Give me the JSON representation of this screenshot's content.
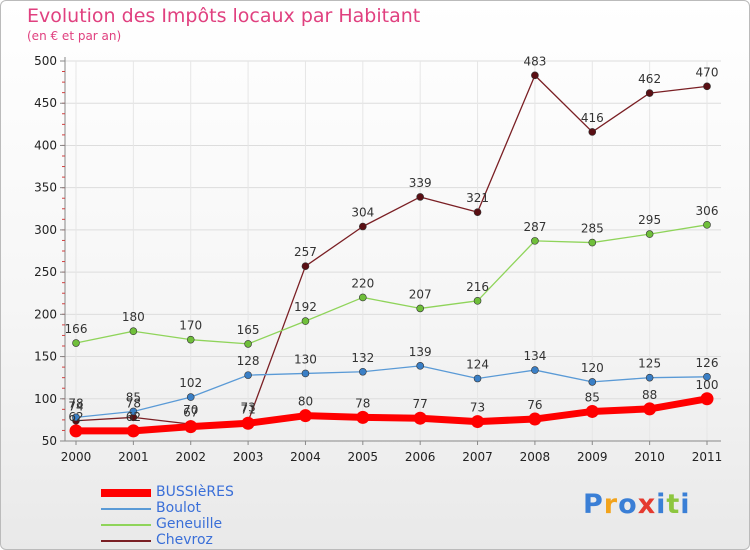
{
  "title": "Evolution des Impôts locaux par Habitant",
  "subtitle": "(en € et par an)",
  "logo": {
    "text": "Proxiti",
    "colors": [
      "#3a7fd6",
      "#f2a31b",
      "#3a7fd6",
      "#e53a2f",
      "#3a7fd6",
      "#8dc63f",
      "#3a7fd6"
    ]
  },
  "chart_data": {
    "type": "line",
    "categories": [
      "2000",
      "2001",
      "2002",
      "2003",
      "2004",
      "2005",
      "2006",
      "2007",
      "2008",
      "2009",
      "2010",
      "2011"
    ],
    "ylim": [
      50,
      500
    ],
    "yticks": [
      50,
      100,
      150,
      200,
      250,
      300,
      350,
      400,
      450,
      500
    ],
    "grid": true,
    "legend_position": "bottom-left",
    "series": [
      {
        "name": "Chevroz",
        "color": "#7a1f24",
        "marker": "#5a0f14",
        "values": [
          74,
          78,
          70,
          73,
          257,
          304,
          339,
          321,
          483,
          416,
          462,
          470
        ]
      },
      {
        "name": "Geneuille",
        "color": "#8fd45a",
        "marker": "#6fbf3a",
        "values": [
          166,
          180,
          170,
          165,
          192,
          220,
          207,
          216,
          287,
          285,
          295,
          306
        ]
      },
      {
        "name": "Boulot",
        "color": "#5a9ad6",
        "marker": "#3a7fc6",
        "values": [
          78,
          85,
          102,
          128,
          130,
          132,
          139,
          124,
          134,
          120,
          125,
          126
        ]
      },
      {
        "name": "BUSSIèRES",
        "color": "#ff0000",
        "marker": "#ff0000",
        "values": [
          62,
          62,
          67,
          71,
          80,
          78,
          77,
          73,
          76,
          85,
          88,
          100
        ]
      }
    ],
    "legend_order": [
      "BUSSIèRES",
      "Boulot",
      "Geneuille",
      "Chevroz"
    ]
  }
}
